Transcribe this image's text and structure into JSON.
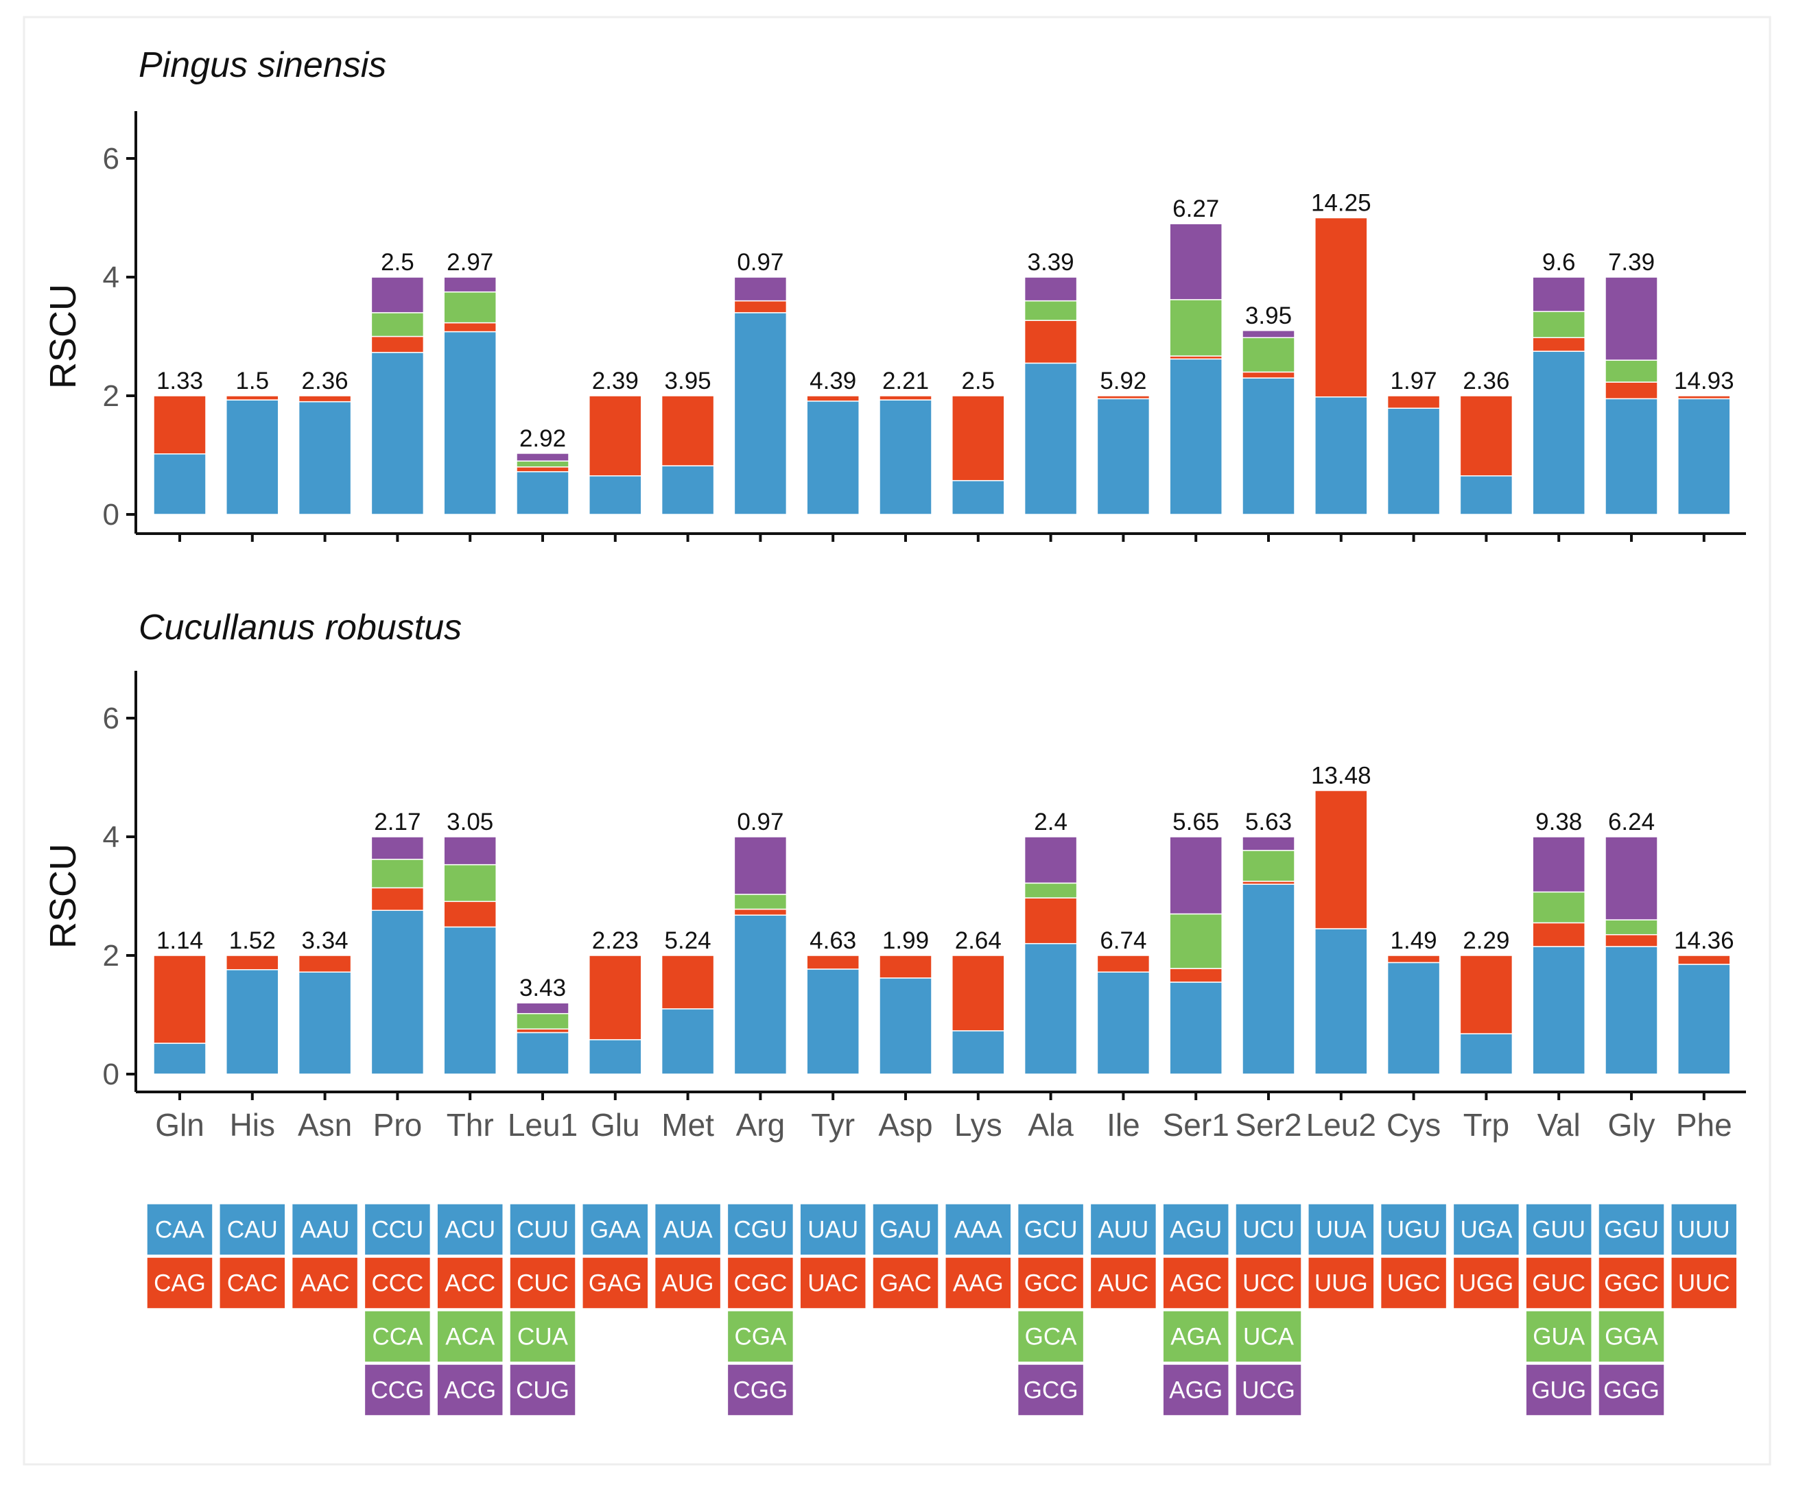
{
  "chart_data": {
    "type": "bar",
    "stacked": true,
    "categories": [
      "Gln",
      "His",
      "Asn",
      "Pro",
      "Thr",
      "Leu1",
      "Glu",
      "Met",
      "Arg",
      "Tyr",
      "Asp",
      "Lys",
      "Ala",
      "Ile",
      "Ser1",
      "Ser2",
      "Leu2",
      "Cys",
      "Trp",
      "Val",
      "Gly",
      "Phe"
    ],
    "ylabel": "RSCU",
    "ylim": [
      0,
      6.8
    ],
    "yticks": [
      "0",
      "2",
      "4",
      "6"
    ],
    "colors": [
      "#4499cc",
      "#e8461e",
      "#7fc45a",
      "#8a50a0"
    ],
    "codons": [
      [
        "CAA",
        "CAG"
      ],
      [
        "CAU",
        "CAC"
      ],
      [
        "AAU",
        "AAC"
      ],
      [
        "CCU",
        "CCC",
        "CCA",
        "CCG"
      ],
      [
        "ACU",
        "ACC",
        "ACA",
        "ACG"
      ],
      [
        "CUU",
        "CUC",
        "CUA",
        "CUG"
      ],
      [
        "GAA",
        "GAG"
      ],
      [
        "AUA",
        "AUG"
      ],
      [
        "CGU",
        "CGC",
        "CGA",
        "CGG"
      ],
      [
        "UAU",
        "UAC"
      ],
      [
        "GAU",
        "GAC"
      ],
      [
        "AAA",
        "AAG"
      ],
      [
        "GCU",
        "GCC",
        "GCA",
        "GCG"
      ],
      [
        "AUU",
        "AUC"
      ],
      [
        "AGU",
        "AGC",
        "AGA",
        "AGG"
      ],
      [
        "UCU",
        "UCC",
        "UCA",
        "UCG"
      ],
      [
        "UUA",
        "UUG"
      ],
      [
        "UGU",
        "UGC"
      ],
      [
        "UGA",
        "UGG"
      ],
      [
        "GUU",
        "GUC",
        "GUA",
        "GUG"
      ],
      [
        "GGU",
        "GGC",
        "GGA",
        "GGG"
      ],
      [
        "UUU",
        "UUC"
      ]
    ],
    "panels": [
      {
        "title": "Pingus sinensis",
        "labels": [
          "1.33",
          "1.5",
          "2.36",
          "2.5",
          "2.97",
          "2.92",
          "2.39",
          "3.95",
          "0.97",
          "4.39",
          "2.21",
          "2.5",
          "3.39",
          "5.92",
          "6.27",
          "3.95",
          "14.25",
          "1.97",
          "2.36",
          "9.6",
          "7.39",
          "14.93"
        ],
        "stacks": [
          [
            1.02,
            0.98
          ],
          [
            1.93,
            0.07
          ],
          [
            1.9,
            0.1
          ],
          [
            2.73,
            0.27,
            0.4,
            0.6
          ],
          [
            3.08,
            0.15,
            0.52,
            0.25
          ],
          [
            0.72,
            0.08,
            0.1,
            0.13
          ],
          [
            0.65,
            1.35
          ],
          [
            0.82,
            1.18
          ],
          [
            3.4,
            0.2,
            0.0,
            0.4
          ],
          [
            1.91,
            0.09
          ],
          [
            1.93,
            0.07
          ],
          [
            0.57,
            1.43
          ],
          [
            2.55,
            0.72,
            0.33,
            0.4
          ],
          [
            1.95,
            0.05
          ],
          [
            2.62,
            0.05,
            0.95,
            1.28
          ],
          [
            2.3,
            0.1,
            0.58,
            0.12
          ],
          [
            1.98,
            3.02
          ],
          [
            1.79,
            0.21
          ],
          [
            0.65,
            1.35
          ],
          [
            2.75,
            0.23,
            0.44,
            0.58
          ],
          [
            1.95,
            0.28,
            0.37,
            1.4
          ],
          [
            1.95,
            0.05
          ]
        ]
      },
      {
        "title": "Cucullanus robustus",
        "labels": [
          "1.14",
          "1.52",
          "3.34",
          "2.17",
          "3.05",
          "3.43",
          "2.23",
          "5.24",
          "0.97",
          "4.63",
          "1.99",
          "2.64",
          "2.4",
          "6.74",
          "5.65",
          "5.63",
          "13.48",
          "1.49",
          "2.29",
          "9.38",
          "6.24",
          "14.36"
        ],
        "stacks": [
          [
            0.52,
            1.48
          ],
          [
            1.76,
            0.24
          ],
          [
            1.72,
            0.28
          ],
          [
            2.76,
            0.38,
            0.48,
            0.38
          ],
          [
            2.48,
            0.43,
            0.62,
            0.47
          ],
          [
            0.7,
            0.06,
            0.26,
            0.18
          ],
          [
            0.58,
            1.42
          ],
          [
            1.1,
            0.9
          ],
          [
            2.68,
            0.1,
            0.25,
            0.97
          ],
          [
            1.77,
            0.23
          ],
          [
            1.62,
            0.38
          ],
          [
            0.73,
            1.27
          ],
          [
            2.2,
            0.77,
            0.25,
            0.78
          ],
          [
            1.72,
            0.28
          ],
          [
            1.55,
            0.23,
            0.92,
            1.3
          ],
          [
            3.2,
            0.05,
            0.52,
            0.23
          ],
          [
            2.45,
            2.33
          ],
          [
            1.88,
            0.12
          ],
          [
            0.68,
            1.32
          ],
          [
            2.15,
            0.4,
            0.52,
            0.93
          ],
          [
            2.15,
            0.2,
            0.25,
            1.4
          ],
          [
            1.85,
            0.15
          ]
        ]
      }
    ]
  }
}
